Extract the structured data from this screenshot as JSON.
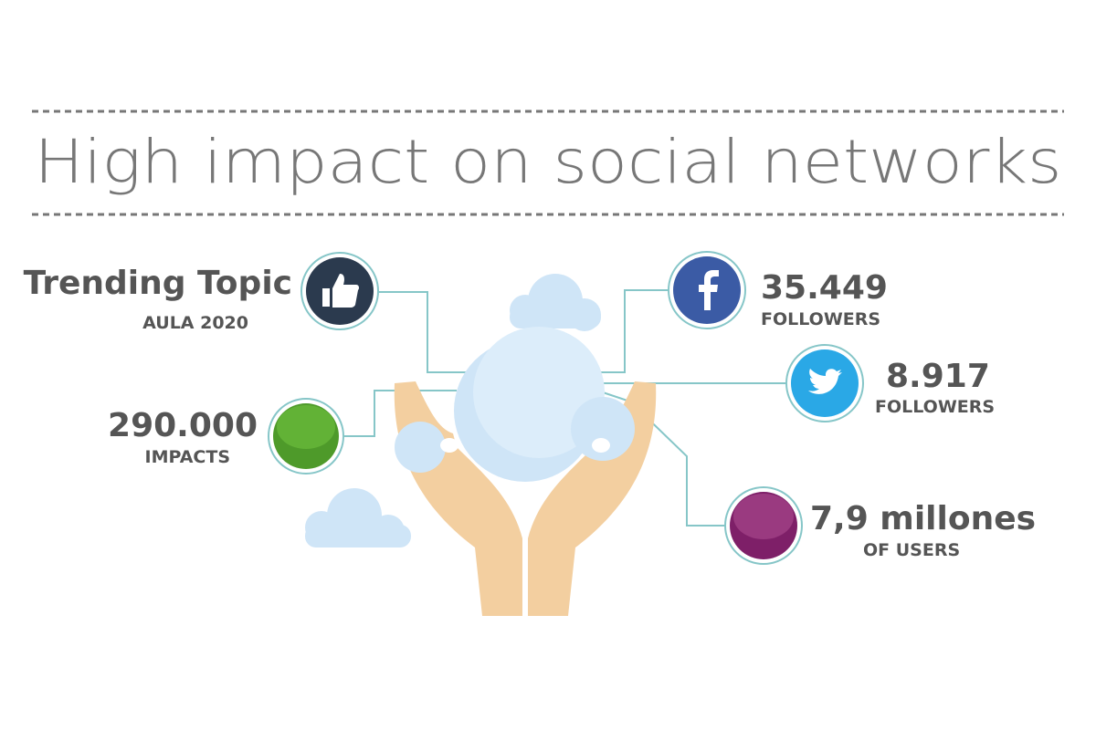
{
  "header": {
    "title": "High impact on social networks"
  },
  "items": [
    {
      "headline": "Trending Topic",
      "caption": "AULA 2020"
    },
    {
      "headline": "290.000",
      "caption": "IMPACTS"
    },
    {
      "headline": "35.449",
      "caption": "FOLLOWERS"
    },
    {
      "headline": "8.917",
      "caption": "FOLLOWERS"
    },
    {
      "headline": "7,9 millones",
      "caption": "OF USERS"
    }
  ]
}
